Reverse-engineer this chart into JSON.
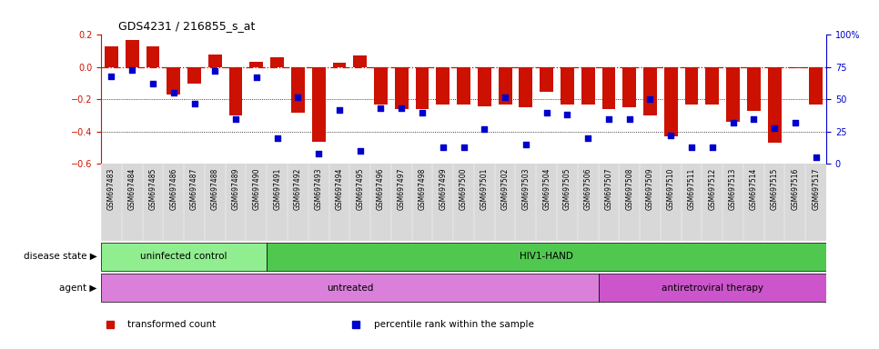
{
  "title": "GDS4231 / 216855_s_at",
  "samples": [
    "GSM697483",
    "GSM697484",
    "GSM697485",
    "GSM697486",
    "GSM697487",
    "GSM697488",
    "GSM697489",
    "GSM697490",
    "GSM697491",
    "GSM697492",
    "GSM697493",
    "GSM697494",
    "GSM697495",
    "GSM697496",
    "GSM697497",
    "GSM697498",
    "GSM697499",
    "GSM697500",
    "GSM697501",
    "GSM697502",
    "GSM697503",
    "GSM697504",
    "GSM697505",
    "GSM697506",
    "GSM697507",
    "GSM697508",
    "GSM697509",
    "GSM697510",
    "GSM697511",
    "GSM697512",
    "GSM697513",
    "GSM697514",
    "GSM697515",
    "GSM697516",
    "GSM697517"
  ],
  "bar_values": [
    0.13,
    0.17,
    0.13,
    -0.17,
    -0.1,
    0.08,
    -0.3,
    0.035,
    0.06,
    -0.28,
    -0.46,
    0.03,
    0.07,
    -0.23,
    -0.26,
    -0.26,
    -0.23,
    -0.23,
    -0.24,
    -0.23,
    -0.25,
    -0.15,
    -0.23,
    -0.23,
    -0.26,
    -0.25,
    -0.3,
    -0.43,
    -0.23,
    -0.23,
    -0.34,
    -0.27,
    -0.47,
    -0.005,
    -0.23
  ],
  "percentile_values": [
    68,
    73,
    62,
    55,
    47,
    72,
    35,
    67,
    20,
    52,
    8,
    42,
    10,
    43,
    43,
    40,
    13,
    13,
    27,
    52,
    15,
    40,
    38,
    20,
    35,
    35,
    50,
    22,
    13,
    13,
    32,
    35,
    28,
    32,
    5
  ],
  "ylim_left": [
    -0.6,
    0.2
  ],
  "ylim_right": [
    0,
    100
  ],
  "bar_color": "#cc1100",
  "dot_color": "#0000cc",
  "background_color": "#ffffff",
  "xticklabel_bg": "#d8d8d8",
  "disease_state_groups": [
    {
      "label": "uninfected control",
      "start": 0,
      "end": 8,
      "color": "#90ee90"
    },
    {
      "label": "HIV1-HAND",
      "start": 8,
      "end": 35,
      "color": "#50c850"
    }
  ],
  "agent_groups": [
    {
      "label": "untreated",
      "start": 0,
      "end": 24,
      "color": "#da80da"
    },
    {
      "label": "antiretroviral therapy",
      "start": 24,
      "end": 35,
      "color": "#cc55cc"
    }
  ],
  "legend_items": [
    {
      "label": "transformed count",
      "color": "#cc1100"
    },
    {
      "label": "percentile rank within the sample",
      "color": "#0000cc"
    }
  ]
}
